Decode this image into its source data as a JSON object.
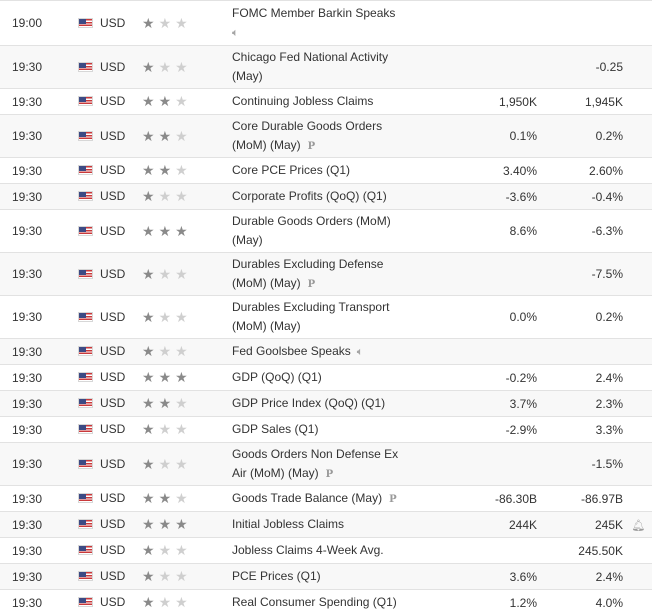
{
  "rows": [
    {
      "time": "19:00",
      "currency": "USD",
      "importance": 1,
      "event": [
        "FOMC Member Barkin Speaks"
      ],
      "speech_row2": true,
      "actual": "",
      "forecast": "",
      "h": 45
    },
    {
      "time": "19:30",
      "currency": "USD",
      "importance": 1,
      "event": [
        "Chicago Fed National Activity",
        "(May)"
      ],
      "actual": "",
      "forecast": "-0.25",
      "h": 43
    },
    {
      "time": "19:30",
      "currency": "USD",
      "importance": 2,
      "event": [
        "Continuing Jobless Claims"
      ],
      "actual": "1,950K",
      "forecast": "1,945K",
      "h": 26
    },
    {
      "time": "19:30",
      "currency": "USD",
      "importance": 2,
      "event": [
        "Core Durable Goods Orders",
        "(MoM) (May)"
      ],
      "preliminary": true,
      "actual": "0.1%",
      "forecast": "0.2%",
      "h": 43
    },
    {
      "time": "19:30",
      "currency": "USD",
      "importance": 2,
      "event": [
        "Core PCE Prices (Q1)"
      ],
      "actual": "3.40%",
      "forecast": "2.60%",
      "h": 26
    },
    {
      "time": "19:30",
      "currency": "USD",
      "importance": 1,
      "event": [
        "Corporate Profits (QoQ) (Q1)"
      ],
      "actual": "-3.6%",
      "forecast": "-0.4%",
      "h": 26
    },
    {
      "time": "19:30",
      "currency": "USD",
      "importance": 3,
      "event": [
        "Durable Goods Orders (MoM)",
        "(May)"
      ],
      "actual": "8.6%",
      "forecast": "-6.3%",
      "h": 43
    },
    {
      "time": "19:30",
      "currency": "USD",
      "importance": 1,
      "event": [
        "Durables Excluding Defense",
        "(MoM) (May)"
      ],
      "preliminary": true,
      "actual": "",
      "forecast": "-7.5%",
      "h": 43
    },
    {
      "time": "19:30",
      "currency": "USD",
      "importance": 1,
      "event": [
        "Durables Excluding Transport",
        "(MoM) (May)"
      ],
      "actual": "0.0%",
      "forecast": "0.2%",
      "h": 43
    },
    {
      "time": "19:30",
      "currency": "USD",
      "importance": 1,
      "event": [
        "Fed Goolsbee Speaks"
      ],
      "speech_inline": true,
      "actual": "",
      "forecast": "",
      "h": 26
    },
    {
      "time": "19:30",
      "currency": "USD",
      "importance": 3,
      "event": [
        "GDP (QoQ) (Q1)"
      ],
      "actual": "-0.2%",
      "forecast": "2.4%",
      "h": 26
    },
    {
      "time": "19:30",
      "currency": "USD",
      "importance": 2,
      "event": [
        "GDP Price Index (QoQ) (Q1)"
      ],
      "actual": "3.7%",
      "forecast": "2.3%",
      "h": 26
    },
    {
      "time": "19:30",
      "currency": "USD",
      "importance": 1,
      "event": [
        "GDP Sales (Q1)"
      ],
      "actual": "-2.9%",
      "forecast": "3.3%",
      "h": 26
    },
    {
      "time": "19:30",
      "currency": "USD",
      "importance": 1,
      "event": [
        "Goods Orders Non Defense Ex",
        "Air (MoM) (May)"
      ],
      "preliminary": true,
      "actual": "",
      "forecast": "-1.5%",
      "h": 43
    },
    {
      "time": "19:30",
      "currency": "USD",
      "importance": 2,
      "event": [
        "Goods Trade Balance (May)"
      ],
      "preliminary_inline": true,
      "actual": "-86.30B",
      "forecast": "-86.97B",
      "h": 26
    },
    {
      "time": "19:30",
      "currency": "USD",
      "importance": 3,
      "event": [
        "Initial Jobless Claims"
      ],
      "actual": "244K",
      "forecast": "245K",
      "alert": true,
      "h": 26
    },
    {
      "time": "19:30",
      "currency": "USD",
      "importance": 1,
      "event": [
        "Jobless Claims 4-Week Avg."
      ],
      "actual": "",
      "forecast": "245.50K",
      "h": 26
    },
    {
      "time": "19:30",
      "currency": "USD",
      "importance": 1,
      "event": [
        "PCE Prices (Q1)"
      ],
      "actual": "3.6%",
      "forecast": "2.4%",
      "h": 26
    },
    {
      "time": "19:30",
      "currency": "USD",
      "importance": 1,
      "event": [
        "Real Consumer Spending (Q1)"
      ],
      "actual": "1.2%",
      "forecast": "4.0%",
      "h": 26
    }
  ],
  "icons": {
    "star": "star-icon",
    "flag": "us-flag-icon",
    "speech": "speaker-icon",
    "preliminary": "preliminary-icon",
    "bell": "bell-icon"
  },
  "colors": {
    "star_on": "#8a8a8a",
    "star_off": "#cfcfcf",
    "row_alt": "#f8f8f8",
    "border": "#e2e2e2"
  }
}
